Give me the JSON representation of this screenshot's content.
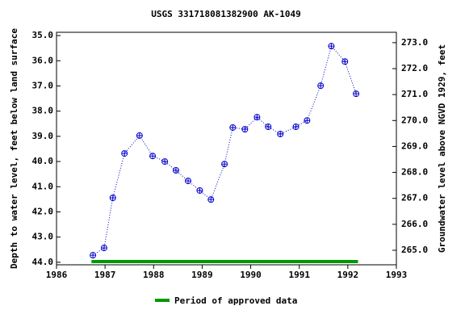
{
  "chart_data": {
    "type": "line",
    "title": "USGS 331718081382900 AK-1049",
    "y_label": "Depth to water level, feet below land surface",
    "y2_label": "Groundwater level above NGVD 1929, feet",
    "x": [
      1986.75,
      1986.98,
      1987.16,
      1987.4,
      1987.71,
      1987.98,
      1988.23,
      1988.46,
      1988.71,
      1988.95,
      1989.18,
      1989.46,
      1989.63,
      1989.88,
      1990.13,
      1990.36,
      1990.61,
      1990.93,
      1991.16,
      1991.44,
      1991.66,
      1991.94,
      1992.17
    ],
    "series": [
      {
        "color": "#0000cc",
        "values": [
          43.72,
          43.43,
          41.44,
          39.68,
          38.97,
          39.78,
          40.0,
          40.35,
          40.77,
          41.15,
          41.51,
          40.1,
          38.65,
          38.72,
          38.24,
          38.62,
          38.91,
          38.62,
          38.37,
          36.99,
          35.42,
          36.03,
          37.31
        ]
      }
    ],
    "approved_period": {
      "name": "Period of approved data",
      "color": "#009900",
      "x": [
        1986.72,
        1992.21
      ]
    },
    "xlim": [
      1986,
      1993
    ],
    "xticks": [
      1986,
      1987,
      1988,
      1989,
      1990,
      1991,
      1992,
      1993
    ],
    "ylim": [
      44.1,
      34.87
    ],
    "yticks": [
      {
        "value": 35,
        "label": "35.0"
      },
      {
        "value": 36,
        "label": "36.0"
      },
      {
        "value": 37,
        "label": "37.0"
      },
      {
        "value": 38,
        "label": "38.0"
      },
      {
        "value": 39,
        "label": "39.0"
      },
      {
        "value": 40,
        "label": "40.0"
      },
      {
        "value": 41,
        "label": "41.0"
      },
      {
        "value": 42,
        "label": "42.0"
      },
      {
        "value": 43,
        "label": "43.0"
      },
      {
        "value": 44,
        "label": "44.0"
      }
    ],
    "y2lim": [
      264.44,
      273.4
    ],
    "y2ticks": [
      {
        "value": 265,
        "label": "265.0"
      },
      {
        "value": 266,
        "label": "266.0"
      },
      {
        "value": 267,
        "label": "267.0"
      },
      {
        "value": 268,
        "label": "268.0"
      },
      {
        "value": 269,
        "label": "269.0"
      },
      {
        "value": 270,
        "label": "270.0"
      },
      {
        "value": 271,
        "label": "271.0"
      },
      {
        "value": 272,
        "label": "272.0"
      },
      {
        "value": 273,
        "label": "273.0"
      }
    ]
  }
}
